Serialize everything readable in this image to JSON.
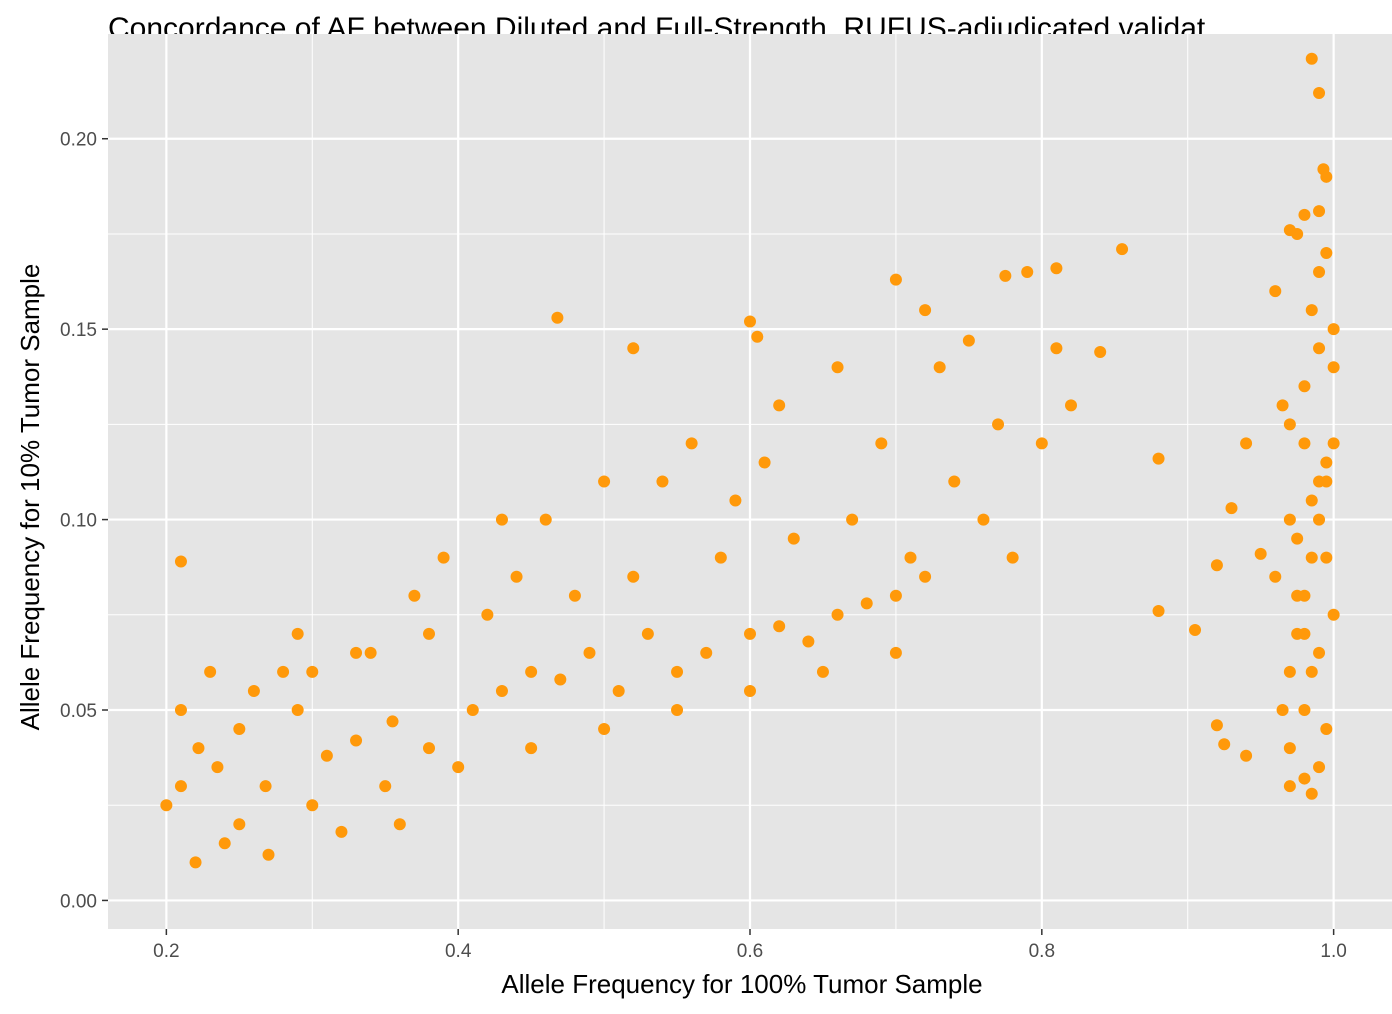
{
  "chart_data": {
    "type": "scatter",
    "title": "Concordance of AF between Diluted and Full-Strength, RUFUS-adjudicated validat",
    "xlabel": "Allele Frequency for 100% Tumor Sample",
    "ylabel": "Allele Frequency for 10% Tumor Sample",
    "xlim": [
      0.16,
      1.04
    ],
    "ylim": [
      -0.0075,
      0.2275
    ],
    "x_ticks": [
      0.2,
      0.4,
      0.6,
      0.8,
      1.0
    ],
    "x_tick_labels": [
      "0.2",
      "0.4",
      "0.6",
      "0.8",
      "1.0"
    ],
    "y_ticks": [
      0.0,
      0.05,
      0.1,
      0.15,
      0.2
    ],
    "y_tick_labels": [
      "0.00",
      "0.05",
      "0.10",
      "0.15",
      "0.20"
    ],
    "grid": true,
    "legend": "none",
    "colors": {
      "point": "#FF990A",
      "panel": "#E5E5E5",
      "grid": "#FFFFFF"
    },
    "series": [
      {
        "x": [
          0.21,
          0.222,
          0.235,
          0.25,
          0.268,
          0.29,
          0.31,
          0.33,
          0.355,
          0.38,
          0.41,
          0.43,
          0.45,
          0.47,
          0.49,
          0.51,
          0.53,
          0.55,
          0.57,
          0.6,
          0.62,
          0.64,
          0.66,
          0.68,
          0.7,
          0.72,
          0.25,
          0.3,
          0.35,
          0.4,
          0.45,
          0.5,
          0.55,
          0.6,
          0.65,
          0.7,
          0.28,
          0.33,
          0.38,
          0.42,
          0.48,
          0.52,
          0.58,
          0.63,
          0.67,
          0.22,
          0.24,
          0.27,
          0.32,
          0.36,
          0.21,
          0.26,
          0.3,
          0.34,
          0.44,
          0.46,
          0.54,
          0.59,
          0.61,
          0.69,
          0.71,
          0.2,
          0.23,
          0.29,
          0.37,
          0.39,
          0.43,
          0.5,
          0.56,
          0.62,
          0.66,
          0.74,
          0.76,
          0.78,
          0.8,
          0.82,
          0.75,
          0.79,
          0.81,
          0.77,
          0.73,
          0.21,
          0.468,
          0.6,
          0.7,
          0.775,
          0.81,
          0.855,
          0.605,
          0.84,
          0.72,
          0.52,
          0.88,
          0.905,
          0.88,
          0.92,
          0.94,
          0.95,
          0.965,
          0.97,
          0.975,
          0.98,
          0.985,
          0.99,
          0.995,
          1.0,
          0.97,
          0.98,
          0.99,
          1.0,
          0.96,
          0.975,
          0.985,
          0.995,
          0.97,
          0.98,
          0.99,
          0.985,
          0.99,
          0.995,
          0.975,
          0.98,
          0.965,
          1.0,
          0.97,
          0.99,
          0.985,
          0.98,
          0.975,
          0.995,
          0.97,
          0.99,
          0.98,
          1.0,
          0.96,
          0.985,
          0.985,
          0.99,
          0.993,
          0.995,
          0.99,
          0.97,
          0.93,
          0.92,
          0.94,
          0.925,
          0.98,
          0.995
        ],
        "y": [
          0.03,
          0.04,
          0.035,
          0.045,
          0.03,
          0.05,
          0.038,
          0.042,
          0.047,
          0.04,
          0.05,
          0.055,
          0.06,
          0.058,
          0.065,
          0.055,
          0.07,
          0.06,
          0.065,
          0.07,
          0.072,
          0.068,
          0.075,
          0.078,
          0.08,
          0.085,
          0.02,
          0.025,
          0.03,
          0.035,
          0.04,
          0.045,
          0.05,
          0.055,
          0.06,
          0.065,
          0.06,
          0.065,
          0.07,
          0.075,
          0.08,
          0.085,
          0.09,
          0.095,
          0.1,
          0.01,
          0.015,
          0.012,
          0.018,
          0.02,
          0.05,
          0.055,
          0.06,
          0.065,
          0.085,
          0.1,
          0.11,
          0.105,
          0.115,
          0.12,
          0.09,
          0.025,
          0.06,
          0.07,
          0.08,
          0.09,
          0.1,
          0.11,
          0.12,
          0.13,
          0.14,
          0.11,
          0.1,
          0.09,
          0.12,
          0.13,
          0.147,
          0.165,
          0.145,
          0.125,
          0.14,
          0.089,
          0.153,
          0.152,
          0.163,
          0.164,
          0.166,
          0.171,
          0.148,
          0.144,
          0.155,
          0.145,
          0.116,
          0.071,
          0.076,
          0.046,
          0.038,
          0.091,
          0.05,
          0.06,
          0.07,
          0.08,
          0.09,
          0.1,
          0.11,
          0.12,
          0.04,
          0.05,
          0.065,
          0.075,
          0.085,
          0.095,
          0.105,
          0.115,
          0.125,
          0.135,
          0.145,
          0.155,
          0.165,
          0.17,
          0.175,
          0.18,
          0.13,
          0.14,
          0.03,
          0.035,
          0.06,
          0.07,
          0.08,
          0.09,
          0.1,
          0.11,
          0.12,
          0.15,
          0.16,
          0.028,
          0.221,
          0.212,
          0.192,
          0.19,
          0.181,
          0.176,
          0.103,
          0.088,
          0.12,
          0.041,
          0.032,
          0.045
        ]
      }
    ]
  }
}
